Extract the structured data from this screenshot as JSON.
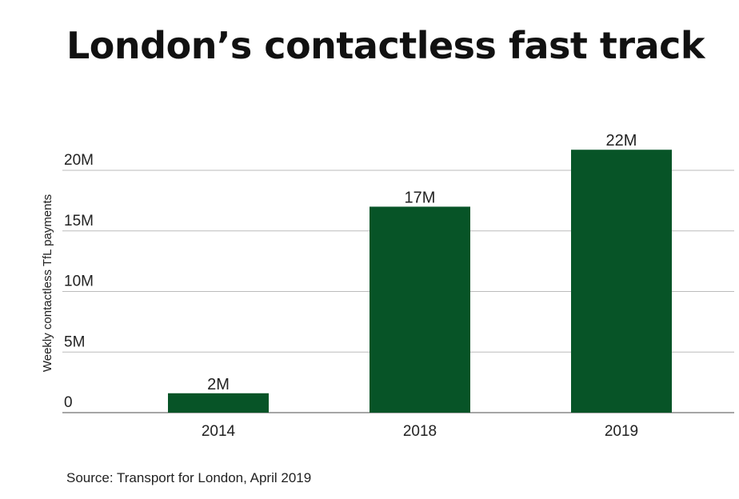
{
  "chart_data": {
    "type": "bar",
    "title": "London’s contactless fast track",
    "ylabel": "Weekly contactless TfL payments",
    "xlabel": "",
    "categories": [
      "2014",
      "2018",
      "2019"
    ],
    "values": [
      1.6,
      17,
      21.7
    ],
    "value_unit": "millions",
    "data_labels": [
      "2M",
      "17M",
      "22M"
    ],
    "ylim": [
      0,
      22
    ],
    "yticks": [
      0,
      5,
      10,
      15,
      20
    ],
    "ytick_labels": [
      "0",
      "5M",
      "10M",
      "15M",
      "20M"
    ],
    "grid": true,
    "legend": "none",
    "bar_color": "#075427",
    "source": "Source: Transport for London, April 2019"
  }
}
